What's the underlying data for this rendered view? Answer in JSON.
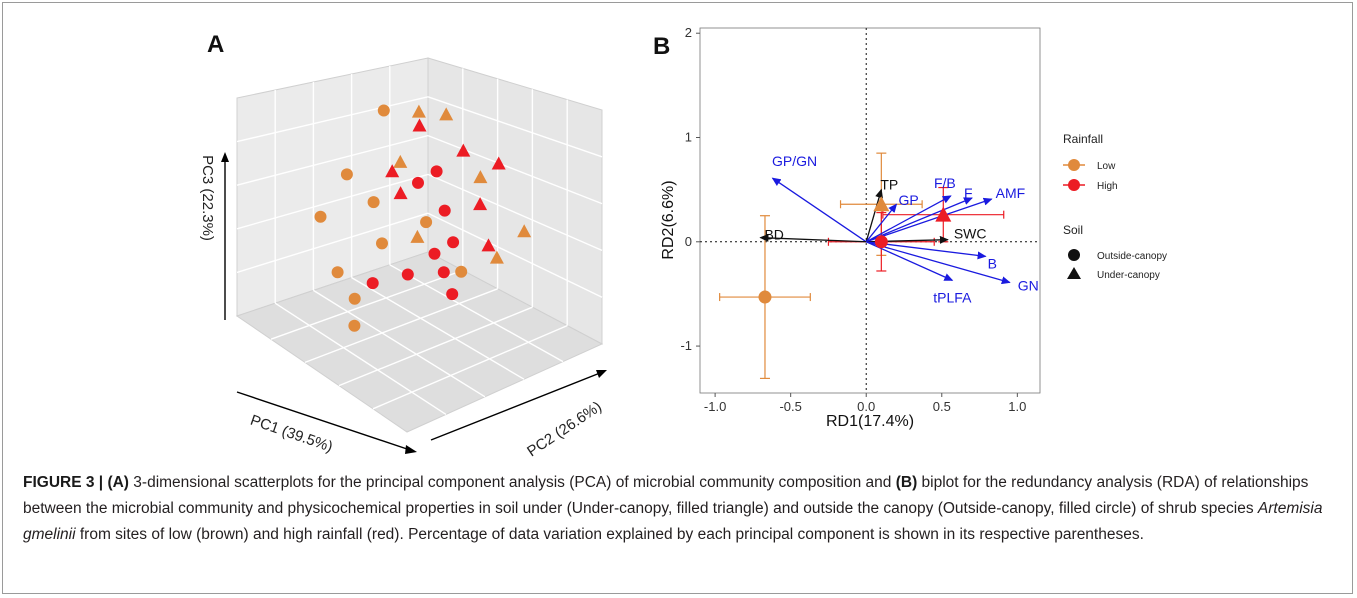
{
  "figure": {
    "caption_label": "FIGURE 3 |",
    "caption_parts": {
      "a_tag": "(A)",
      "text1": " 3-dimensional scatterplots for the principal component analysis (PCA) of microbial community composition and ",
      "b_tag": "(B)",
      "text2": " biplot for the redundancy analysis (RDA) of relationships between the microbial community and physicochemical properties in soil under (Under-canopy, filled triangle) and outside the canopy (Outside-canopy, filled circle) of shrub species ",
      "species": "Artemisia gmelinii",
      "text3": " from sites of low (brown) and high rainfall (red). Percentage of data variation explained by each principal component is shown in its respective parentheses."
    }
  },
  "colors": {
    "low": "#e08a3c",
    "high": "#ec1c24",
    "arrow_blue": "#1a1adf",
    "arrow_black": "#111111"
  },
  "chart_data": [
    {
      "panel_label": "A",
      "type": "scatter",
      "projection": "3d",
      "axis_labels": {
        "x": "PC1 (39.5%)",
        "y": "PC2 (26.6%)",
        "z": "PC3 (22.3%)"
      },
      "legend": "none",
      "series": [
        {
          "name": "Low",
          "marker": "circle",
          "points": [
            [
              -0.2,
              -0.6,
              0.7
            ],
            [
              0.5,
              -0.3,
              0.4
            ],
            [
              0.6,
              -0.5,
              -0.1
            ],
            [
              0.3,
              -0.2,
              0.1
            ],
            [
              0.7,
              -0.2,
              -0.5
            ],
            [
              0.8,
              0.1,
              -0.6
            ],
            [
              0.2,
              0.3,
              0.1
            ],
            [
              0.4,
              0.0,
              -0.2
            ],
            [
              0.1,
              0.6,
              -0.3
            ],
            [
              0.9,
              0.2,
              -0.8
            ]
          ]
        },
        {
          "name": "Low",
          "marker": "triangle",
          "points": [
            [
              -0.7,
              -0.4,
              0.6
            ],
            [
              -0.3,
              -0.3,
              0.8
            ],
            [
              -0.5,
              0.2,
              0.3
            ],
            [
              -0.6,
              0.6,
              -0.1
            ],
            [
              -0.2,
              0.7,
              -0.2
            ],
            [
              0.1,
              -0.1,
              0.5
            ],
            [
              0.2,
              0.2,
              -0.1
            ]
          ]
        },
        {
          "name": "High",
          "marker": "circle",
          "points": [
            [
              -0.4,
              -0.2,
              0.2
            ],
            [
              0.0,
              0.0,
              0.3
            ],
            [
              0.1,
              0.4,
              -0.4
            ],
            [
              0.3,
              0.5,
              -0.1
            ],
            [
              -0.1,
              0.3,
              -0.2
            ],
            [
              0.5,
              0.4,
              -0.3
            ],
            [
              0.6,
              0.1,
              -0.5
            ],
            [
              -0.2,
              0.1,
              0.0
            ],
            [
              0.2,
              0.6,
              -0.5
            ]
          ]
        },
        {
          "name": "High",
          "marker": "triangle",
          "points": [
            [
              -0.8,
              0.1,
              0.3
            ],
            [
              -0.6,
              -0.1,
              0.4
            ],
            [
              -0.4,
              0.3,
              0.1
            ],
            [
              -0.5,
              -0.5,
              0.5
            ],
            [
              0.0,
              -0.2,
              0.1
            ],
            [
              -0.3,
              0.5,
              -0.2
            ],
            [
              -0.1,
              -0.4,
              0.2
            ]
          ]
        }
      ]
    },
    {
      "panel_label": "B",
      "type": "scatter",
      "xlabel": "RD1(17.4%)",
      "ylabel": "RD2(6.6%)",
      "xlim": [
        -1.1,
        1.15
      ],
      "ylim": [
        -1.45,
        2.05
      ],
      "x_ticks": [
        "-1.0",
        "-0.5",
        "0.0",
        "0.5",
        "1.0"
      ],
      "y_ticks": [
        "-1",
        "0",
        "1",
        "2"
      ],
      "zero_lines": "dotted",
      "legend_placement": "right",
      "legend": {
        "rainfall_title": "Rainfall",
        "rainfall_items": [
          {
            "label": "Low",
            "color": "#e08a3c"
          },
          {
            "label": "High",
            "color": "#ec1c24"
          }
        ],
        "soil_title": "Soil",
        "soil_items": [
          {
            "label": "Outside-canopy",
            "marker": "circle"
          },
          {
            "label": "Under-canopy",
            "marker": "triangle"
          }
        ]
      },
      "vectors": [
        {
          "label": "GP/GN",
          "x": -0.62,
          "y": 0.61,
          "color": "blue"
        },
        {
          "label": "TP",
          "x": 0.1,
          "y": 0.5,
          "color": "black"
        },
        {
          "label": "GP",
          "x": 0.2,
          "y": 0.36,
          "color": "blue"
        },
        {
          "label": "F/B",
          "x": 0.56,
          "y": 0.44,
          "color": "blue"
        },
        {
          "label": "F",
          "x": 0.7,
          "y": 0.42,
          "color": "blue"
        },
        {
          "label": "AMF",
          "x": 0.83,
          "y": 0.41,
          "color": "blue"
        },
        {
          "label": "BD",
          "x": -0.7,
          "y": 0.04,
          "color": "black"
        },
        {
          "label": "SWC",
          "x": 0.54,
          "y": 0.02,
          "color": "black"
        },
        {
          "label": "B",
          "x": 0.79,
          "y": -0.14,
          "color": "blue"
        },
        {
          "label": "GN",
          "x": 0.95,
          "y": -0.39,
          "color": "blue"
        },
        {
          "label": "tPLFA",
          "x": 0.57,
          "y": -0.37,
          "color": "blue"
        }
      ],
      "points": [
        {
          "group": "Low",
          "marker": "circle",
          "x": -0.67,
          "y": -0.53,
          "x_err": 0.3,
          "y_err": 0.78
        },
        {
          "group": "Low",
          "marker": "triangle",
          "x": 0.1,
          "y": 0.36,
          "x_err": 0.27,
          "y_err": 0.49
        },
        {
          "group": "High",
          "marker": "circle",
          "x": 0.1,
          "y": 0.0,
          "x_err": 0.35,
          "y_err": 0.28
        },
        {
          "group": "High",
          "marker": "triangle",
          "x": 0.51,
          "y": 0.26,
          "x_err": 0.4,
          "y_err": 0.26
        }
      ]
    }
  ]
}
